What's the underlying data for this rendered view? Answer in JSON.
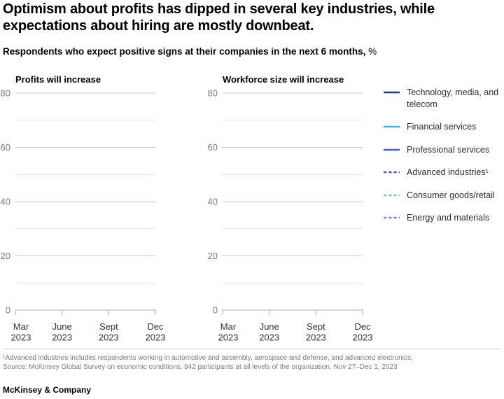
{
  "header": {
    "title_line1": "Optimism about profits has dipped in several key industries, while",
    "title_line2": "expectations about hiring are mostly downbeat.",
    "subtitle": "Respondents who expect positive signs at their companies in the next 6 months,",
    "subtitle_unit": "%"
  },
  "chart_data": [
    {
      "type": "line",
      "title": "Profits will increase",
      "categories": [
        "Mar 2023",
        "June 2023",
        "Sept 2023",
        "Dec 2023"
      ],
      "ylim": [
        0,
        80
      ],
      "y_major_ticks": [
        0,
        20,
        40,
        60,
        80
      ],
      "y_minor_ticks": [
        10,
        30,
        50,
        70
      ],
      "grid": true,
      "series": [
        {
          "name": "Technology, media, and telecom",
          "values": []
        },
        {
          "name": "Financial services",
          "values": []
        },
        {
          "name": "Professional services",
          "values": []
        },
        {
          "name": "Advanced industries¹",
          "values": []
        },
        {
          "name": "Consumer goods/retail",
          "values": []
        },
        {
          "name": "Energy and materials",
          "values": []
        }
      ],
      "note": "Plot area is empty in the screenshot - no data lines rendered"
    },
    {
      "type": "line",
      "title": "Workforce size will increase",
      "categories": [
        "Mar 2023",
        "June 2023",
        "Sept 2023",
        "Dec 2023"
      ],
      "ylim": [
        0,
        80
      ],
      "y_major_ticks": [
        0,
        20,
        40,
        60,
        80
      ],
      "y_minor_ticks": [
        10,
        30,
        50,
        70
      ],
      "grid": true,
      "series": [
        {
          "name": "Technology, media, and telecom",
          "values": []
        },
        {
          "name": "Financial services",
          "values": []
        },
        {
          "name": "Professional services",
          "values": []
        },
        {
          "name": "Advanced industries¹",
          "values": []
        },
        {
          "name": "Consumer goods/retail",
          "values": []
        },
        {
          "name": "Energy and materials",
          "values": []
        }
      ],
      "note": "Plot area is empty in the screenshot - no data lines rendered"
    }
  ],
  "legend": {
    "position": "right",
    "items": [
      {
        "label": "Technology, media, and telecom",
        "color": "#1d3a91",
        "style": "solid"
      },
      {
        "label": "Financial services",
        "color": "#3cb5ec",
        "style": "solid"
      },
      {
        "label": "Professional services",
        "color": "#4160e1",
        "style": "solid"
      },
      {
        "label": "Advanced industries¹",
        "color": "#445fa8",
        "style": "dashed"
      },
      {
        "label": "Consumer goods/retail",
        "color": "#73bff2",
        "style": "dashed"
      },
      {
        "label": "Energy and materials",
        "color": "#6e87ec",
        "style": "dashed"
      }
    ]
  },
  "colors": {
    "grid_major": "#c9c9c9",
    "grid_minor": "#e4e4e4",
    "axis_line": "#a8a8a8",
    "y_tick_label": "#7d7d7d",
    "x_tick_label": "#333333"
  },
  "footnote": {
    "line1": "¹Advanced industries includes respondents working in automotive and assembly, aerospace and defense, and advanced electronics.",
    "line2": "Source: McKinsey Global Survey on economic conditions, 942 participants at all levels of the organization, Nov 27–Dec 1, 2023"
  },
  "brand": "McKinsey & Company"
}
